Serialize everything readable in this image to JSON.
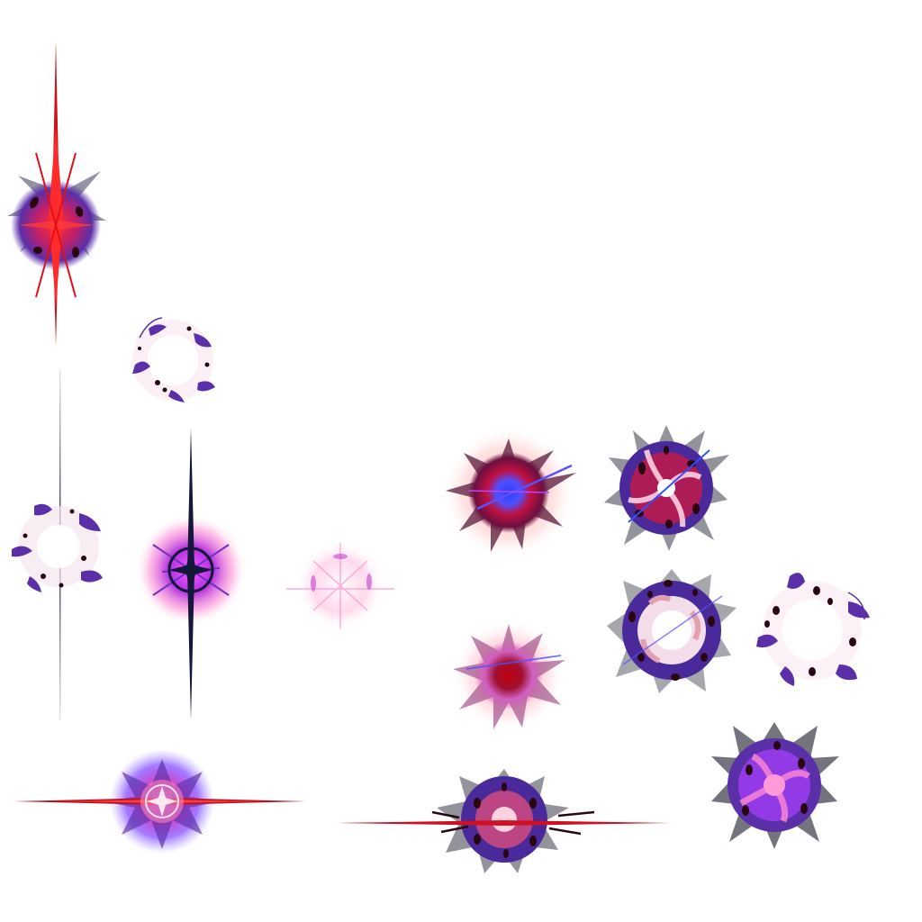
{
  "palette": {
    "red": "#e0101a",
    "crimson": "#8a0610",
    "purple": "#5a2fa8",
    "violet": "#9b3cf0",
    "blue": "#2a3cff",
    "pink": "#ff6fae",
    "navy": "#14163a",
    "ink": "#2a0610",
    "white": "#ffffff",
    "shadow": "#3a3a4a"
  },
  "sprites": [
    {
      "name": "burst-red-vertical-flare",
      "style": "flare-v",
      "color": "red"
    },
    {
      "name": "burst-ring-white-top",
      "style": "ring",
      "color": "purple"
    },
    {
      "name": "thin-line-vertical",
      "style": "line",
      "color": "navy"
    },
    {
      "name": "burst-ring-white-left",
      "style": "ring",
      "color": "purple"
    },
    {
      "name": "burst-navy-star-flare",
      "style": "star-v",
      "color": "violet"
    },
    {
      "name": "burst-white-sparkle",
      "style": "sparkle",
      "color": "pink"
    },
    {
      "name": "burst-blue-core",
      "style": "glow-core",
      "color": "blue"
    },
    {
      "name": "burst-swirl-dark",
      "style": "dense",
      "color": "purple"
    },
    {
      "name": "burst-red-core",
      "style": "glow-core",
      "color": "crimson"
    },
    {
      "name": "burst-ring-white-mid",
      "style": "ring",
      "color": "purple"
    },
    {
      "name": "burst-ring-white-right",
      "style": "ring",
      "color": "purple"
    },
    {
      "name": "burst-pink-star-horizontal-flare",
      "style": "star-h",
      "color": "pink"
    },
    {
      "name": "burst-horizontal-red-line",
      "style": "flare-h",
      "color": "red"
    },
    {
      "name": "burst-dense-purple",
      "style": "dense",
      "color": "violet"
    }
  ]
}
